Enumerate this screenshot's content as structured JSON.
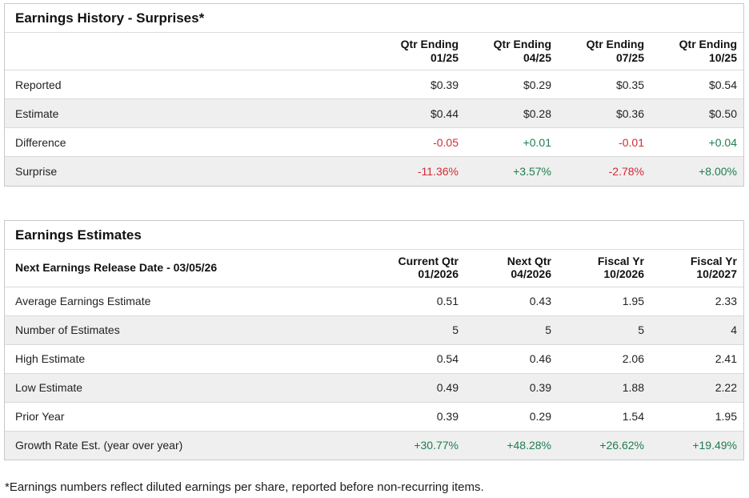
{
  "page": {
    "footnote": "*Earnings numbers reflect diluted earnings per share, reported before non-recurring items."
  },
  "colors": {
    "positive_value": "#1e7d4f",
    "negative_value": "#d12b35",
    "row_stripe": "#efefef",
    "card_border": "#c9c9c9"
  },
  "surprises_table": {
    "title": "Earnings History - Surprises*",
    "columns": [
      "Qtr Ending\n01/25",
      "Qtr Ending\n04/25",
      "Qtr Ending\n07/25",
      "Qtr Ending\n10/25"
    ],
    "rows": [
      {
        "label": "Reported",
        "values": [
          "$0.39",
          "$0.29",
          "$0.35",
          "$0.54"
        ]
      },
      {
        "label": "Estimate",
        "values": [
          "$0.44",
          "$0.28",
          "$0.36",
          "$0.50"
        ]
      },
      {
        "label": "Difference",
        "values": [
          "-0.05",
          "+0.01",
          "-0.01",
          "+0.04"
        ]
      },
      {
        "label": "Surprise",
        "values": [
          "-11.36%",
          "+3.57%",
          "-2.78%",
          "+8.00%"
        ]
      }
    ]
  },
  "estimates_table": {
    "title": "Earnings Estimates",
    "header_label": "Next Earnings Release Date - 03/05/26",
    "columns": [
      "Current Qtr\n01/2026",
      "Next Qtr\n04/2026",
      "Fiscal Yr\n10/2026",
      "Fiscal Yr\n10/2027"
    ],
    "rows": [
      {
        "label": "Average Earnings Estimate",
        "values": [
          "0.51",
          "0.43",
          "1.95",
          "2.33"
        ]
      },
      {
        "label": "Number of Estimates",
        "values": [
          "5",
          "5",
          "5",
          "4"
        ]
      },
      {
        "label": "High Estimate",
        "values": [
          "0.54",
          "0.46",
          "2.06",
          "2.41"
        ]
      },
      {
        "label": "Low Estimate",
        "values": [
          "0.49",
          "0.39",
          "1.88",
          "2.22"
        ]
      },
      {
        "label": "Prior Year",
        "values": [
          "0.39",
          "0.29",
          "1.54",
          "1.95"
        ]
      },
      {
        "label": "Growth Rate Est. (year over year)",
        "values": [
          "+30.77%",
          "+48.28%",
          "+26.62%",
          "+19.49%"
        ]
      }
    ]
  }
}
